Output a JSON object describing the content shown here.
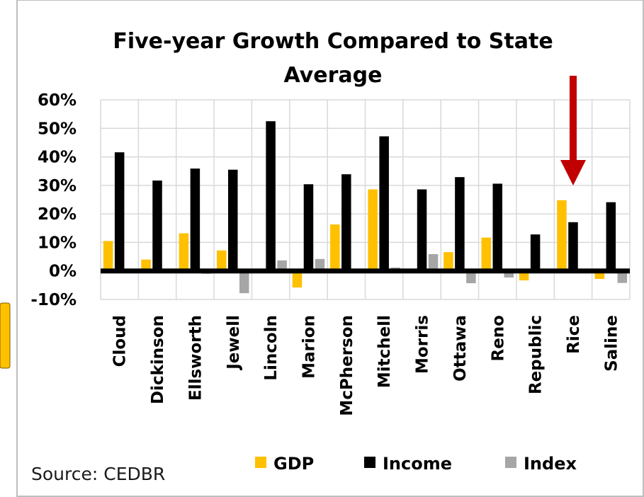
{
  "chart_data": {
    "type": "bar",
    "title": "Five-year Growth Compared to State Average",
    "title_lines": [
      "Five-year Growth Compared to State",
      "Average"
    ],
    "categories": [
      "Cloud",
      "Dickinson",
      "Ellsworth",
      "Jewell",
      "Lincoln",
      "Marion",
      "McPherson",
      "Mitchell",
      "Morris",
      "Ottawa",
      "Reno",
      "Republic",
      "Rice",
      "Saline"
    ],
    "series": [
      {
        "name": "GDP",
        "color": "#FFC000",
        "values": [
          10.5,
          4.0,
          13.2,
          7.2,
          0.0,
          -5.8,
          16.3,
          28.6,
          0.0,
          6.6,
          11.7,
          -3.3,
          24.8,
          -2.8
        ]
      },
      {
        "name": "Income",
        "color": "#000000",
        "values": [
          41.6,
          31.7,
          35.9,
          35.5,
          52.5,
          30.4,
          33.9,
          47.2,
          28.6,
          32.9,
          30.6,
          12.8,
          17.1,
          24.1
        ]
      },
      {
        "name": "Index",
        "color": "#A6A6A6",
        "values": [
          0.0,
          0.0,
          -1.0,
          -7.8,
          3.7,
          4.2,
          0.0,
          1.2,
          5.9,
          -4.3,
          -2.3,
          0.0,
          0.0,
          -4.2
        ]
      }
    ],
    "y_ticks": [
      "60%",
      "50%",
      "40%",
      "30%",
      "20%",
      "10%",
      "0%",
      "-10%"
    ],
    "ylim": [
      -10,
      60
    ],
    "grid": true,
    "legend_position": "bottom",
    "xlabel": "",
    "ylabel": "",
    "annotation": {
      "type": "arrow",
      "color": "#C00000",
      "points_to": "Rice"
    }
  },
  "source": "Source: CEDBR"
}
